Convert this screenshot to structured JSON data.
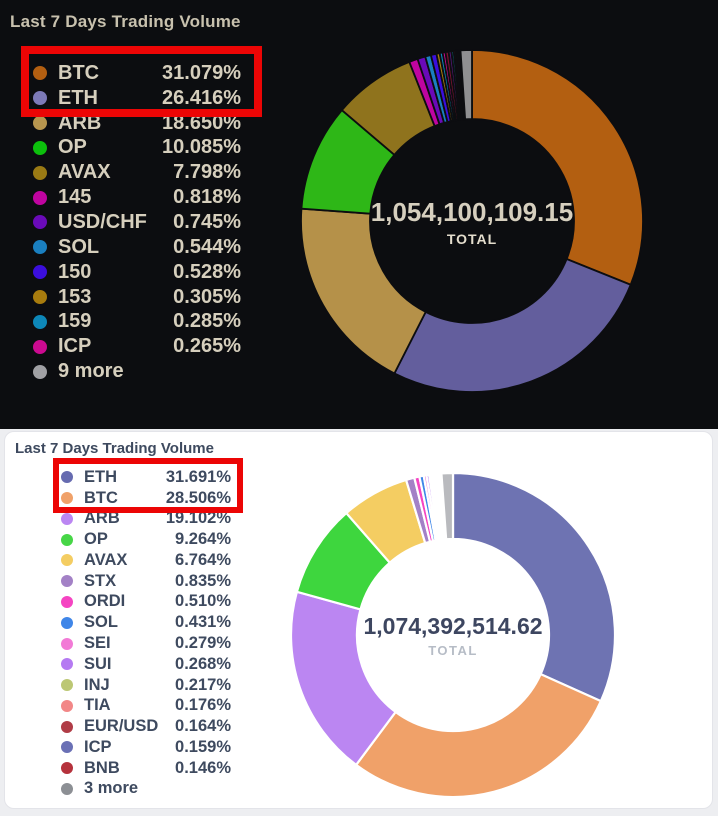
{
  "highlight_color": "#ec0505",
  "chart_data": [
    {
      "type": "pie",
      "style": "donut",
      "theme": "dark",
      "title": "Last 7 Days Trading Volume",
      "center": {
        "total": "1,054,100,109.15",
        "label": "TOTAL"
      },
      "unit": "%",
      "legend_position": "left",
      "series": [
        {
          "name": "BTC",
          "value": 31.079,
          "color": "#b35f11"
        },
        {
          "name": "ETH",
          "value": 26.416,
          "color": "#635e9d",
          "dot": "#7d7ab8"
        },
        {
          "name": "ARB",
          "value": 18.65,
          "color": "#b59149",
          "dot": "#b8964f"
        },
        {
          "name": "OP",
          "value": 10.085,
          "color": "#2eb717",
          "dot": "#0cc00c"
        },
        {
          "name": "AVAX",
          "value": 7.798,
          "color": "#8f731d",
          "dot": "#9a7a14"
        },
        {
          "name": "145",
          "value": 0.818,
          "color": "#c004a0"
        },
        {
          "name": "USD/CHF",
          "value": 0.745,
          "color": "#6a0ab8"
        },
        {
          "name": "SOL",
          "value": 0.544,
          "color": "#1a7fc0"
        },
        {
          "name": "150",
          "value": 0.528,
          "color": "#3b0edd"
        },
        {
          "name": "153",
          "value": 0.305,
          "color": "#a87c0e"
        },
        {
          "name": "159",
          "value": 0.285,
          "color": "#0d87b8"
        },
        {
          "name": "ICP",
          "value": 0.265,
          "color": "#cc0a90"
        }
      ],
      "others": {
        "label": "9 more",
        "dot": "#a0a0a4",
        "slices_est": [
          {
            "value": 0.3,
            "color": "#7c1430"
          },
          {
            "value": 0.26,
            "color": "#55197a"
          },
          {
            "value": 0.22,
            "color": "#0d5c6e"
          },
          {
            "value": 0.18,
            "color": "#801226"
          },
          {
            "value": 0.15,
            "color": "#2a2e5c"
          },
          {
            "value": 0.12,
            "color": "#5e1414"
          },
          {
            "value": 0.1,
            "color": "#163f5e"
          },
          {
            "value": 0.08,
            "color": "#3a3a3e"
          },
          {
            "value": 1.072,
            "color": "#8f8f91"
          }
        ]
      },
      "highlight_rows": [
        "BTC",
        "ETH"
      ]
    },
    {
      "type": "pie",
      "style": "donut",
      "theme": "light",
      "title": "Last 7 Days Trading Volume",
      "center": {
        "total": "1,074,392,514.62",
        "label": "TOTAL"
      },
      "unit": "%",
      "legend_position": "left",
      "series": [
        {
          "name": "ETH",
          "value": 31.691,
          "color": "#6e73b2",
          "dot": "#666bb0"
        },
        {
          "name": "BTC",
          "value": 28.506,
          "color": "#f0a169"
        },
        {
          "name": "ARB",
          "value": 19.102,
          "color": "#bb86f2"
        },
        {
          "name": "OP",
          "value": 9.264,
          "color": "#3ed63e",
          "dot": "#47d647"
        },
        {
          "name": "AVAX",
          "value": 6.764,
          "color": "#f4cd62"
        },
        {
          "name": "STX",
          "value": 0.835,
          "color": "#a381c6"
        },
        {
          "name": "ORDI",
          "value": 0.51,
          "color": "#f544c2"
        },
        {
          "name": "SOL",
          "value": 0.431,
          "color": "#3f86e8"
        },
        {
          "name": "SEI",
          "value": 0.279,
          "color": "#f27ad6"
        },
        {
          "name": "SUI",
          "value": 0.268,
          "color": "#b57af2"
        },
        {
          "name": "INJ",
          "value": 0.217,
          "color": "#bcc774"
        },
        {
          "name": "TIA",
          "value": 0.176,
          "color": "#f28787"
        },
        {
          "name": "EUR/USD",
          "value": 0.164,
          "color": "#b03c46"
        },
        {
          "name": "ICP",
          "value": 0.159,
          "color": "#6a70b5"
        },
        {
          "name": "BNB",
          "value": 0.146,
          "color": "#b5323c"
        }
      ],
      "others": {
        "label": "3 more",
        "dot": "#8c8f94",
        "slices_est": [
          {
            "value": 0.2,
            "color": "#d44f66"
          },
          {
            "value": 0.15,
            "color": "#8a56c0"
          },
          {
            "value": 1.138,
            "color": "#b9babe"
          }
        ]
      },
      "highlight_rows": [
        "ETH",
        "BTC"
      ]
    }
  ]
}
